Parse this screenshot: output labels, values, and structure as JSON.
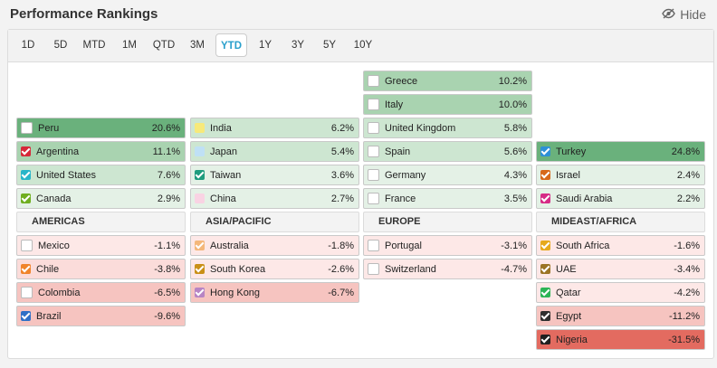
{
  "header": {
    "title": "Performance Rankings",
    "hide_label": "Hide"
  },
  "tabs": [
    {
      "label": "1D"
    },
    {
      "label": "5D"
    },
    {
      "label": "MTD"
    },
    {
      "label": "1M"
    },
    {
      "label": "QTD"
    },
    {
      "label": "3M"
    },
    {
      "label": "YTD",
      "active": true
    },
    {
      "label": "1Y"
    },
    {
      "label": "3Y"
    },
    {
      "label": "5Y"
    },
    {
      "label": "10Y"
    }
  ],
  "regions": {
    "americas": {
      "label": "AMERICAS",
      "gainers": [
        {
          "name": "Peru",
          "value": "20.6%",
          "bg": "#6ab17c",
          "swatch": "#ffffff",
          "checked": false
        },
        {
          "name": "Argentina",
          "value": "11.1%",
          "bg": "#a9d3b0",
          "swatch": "#d62839",
          "checked": true
        },
        {
          "name": "United States",
          "value": "7.6%",
          "bg": "#cde6d1",
          "swatch": "#28b5c9",
          "checked": true
        },
        {
          "name": "Canada",
          "value": "2.9%",
          "bg": "#e4f1e6",
          "swatch": "#6fae1f",
          "checked": true
        }
      ],
      "losers": [
        {
          "name": "Mexico",
          "value": "-1.1%",
          "bg": "#fde8e7",
          "swatch": "#ffffff",
          "checked": false
        },
        {
          "name": "Chile",
          "value": "-3.8%",
          "bg": "#fbdcda",
          "swatch": "#f0842b",
          "checked": true
        },
        {
          "name": "Colombia",
          "value": "-6.5%",
          "bg": "#f6c4c0",
          "swatch": "#ffffff",
          "checked": false
        },
        {
          "name": "Brazil",
          "value": "-9.6%",
          "bg": "#f6c4c0",
          "swatch": "#2f6fc6",
          "checked": true
        }
      ]
    },
    "asia": {
      "label": "ASIA/PACIFIC",
      "gainers": [
        {
          "name": "India",
          "value": "6.2%",
          "bg": "#cde6d1",
          "swatch": "#f7e97a",
          "checked": false
        },
        {
          "name": "Japan",
          "value": "5.4%",
          "bg": "#cde6d1",
          "swatch": "#bfe0f5",
          "checked": false
        },
        {
          "name": "Taiwan",
          "value": "3.6%",
          "bg": "#e4f1e6",
          "swatch": "#1e9c7e",
          "checked": true
        },
        {
          "name": "China",
          "value": "2.7%",
          "bg": "#e4f1e6",
          "swatch": "#f9d3e3",
          "checked": false
        }
      ],
      "losers": [
        {
          "name": "Australia",
          "value": "-1.8%",
          "bg": "#fde8e7",
          "swatch": "#f4b77a",
          "checked": true
        },
        {
          "name": "South Korea",
          "value": "-2.6%",
          "bg": "#fde8e7",
          "swatch": "#c99017",
          "checked": true
        },
        {
          "name": "Hong Kong",
          "value": "-6.7%",
          "bg": "#f6c4c0",
          "swatch": "#b784c4",
          "checked": true
        }
      ]
    },
    "europe": {
      "label": "EUROPE",
      "gainers": [
        {
          "name": "Greece",
          "value": "10.2%",
          "bg": "#a9d3b0",
          "swatch": "#ffffff",
          "checked": false
        },
        {
          "name": "Italy",
          "value": "10.0%",
          "bg": "#a9d3b0",
          "swatch": "#ffffff",
          "checked": false
        },
        {
          "name": "United Kingdom",
          "value": "5.8%",
          "bg": "#cde6d1",
          "swatch": "#ffffff",
          "checked": false
        },
        {
          "name": "Spain",
          "value": "5.6%",
          "bg": "#cde6d1",
          "swatch": "#ffffff",
          "checked": false
        },
        {
          "name": "Germany",
          "value": "4.3%",
          "bg": "#e4f1e6",
          "swatch": "#ffffff",
          "checked": false
        },
        {
          "name": "France",
          "value": "3.5%",
          "bg": "#e4f1e6",
          "swatch": "#ffffff",
          "checked": false
        }
      ],
      "losers": [
        {
          "name": "Portugal",
          "value": "-3.1%",
          "bg": "#fde8e7",
          "swatch": "#ffffff",
          "checked": false
        },
        {
          "name": "Switzerland",
          "value": "-4.7%",
          "bg": "#fde8e7",
          "swatch": "#ffffff",
          "checked": false
        }
      ]
    },
    "mideast": {
      "label": "MIDEAST/AFRICA",
      "gainers": [
        {
          "name": "Turkey",
          "value": "24.8%",
          "bg": "#6ab17c",
          "swatch": "#2d8fd6",
          "checked": true
        },
        {
          "name": "Israel",
          "value": "2.4%",
          "bg": "#e4f1e6",
          "swatch": "#d7681a",
          "checked": true
        },
        {
          "name": "Saudi Arabia",
          "value": "2.2%",
          "bg": "#e4f1e6",
          "swatch": "#d62b86",
          "checked": true
        }
      ],
      "losers": [
        {
          "name": "South Africa",
          "value": "-1.6%",
          "bg": "#fde8e7",
          "swatch": "#e6a91c",
          "checked": true
        },
        {
          "name": "UAE",
          "value": "-3.4%",
          "bg": "#fde8e7",
          "swatch": "#9b7424",
          "checked": true
        },
        {
          "name": "Qatar",
          "value": "-4.2%",
          "bg": "#fde8e7",
          "swatch": "#2bb455",
          "checked": true
        },
        {
          "name": "Egypt",
          "value": "-11.2%",
          "bg": "#f6c4c0",
          "swatch": "#2e2e2e",
          "checked": true
        },
        {
          "name": "Nigeria",
          "value": "-31.5%",
          "bg": "#e36b60",
          "swatch": "#1f1f1f",
          "checked": true
        }
      ]
    }
  }
}
